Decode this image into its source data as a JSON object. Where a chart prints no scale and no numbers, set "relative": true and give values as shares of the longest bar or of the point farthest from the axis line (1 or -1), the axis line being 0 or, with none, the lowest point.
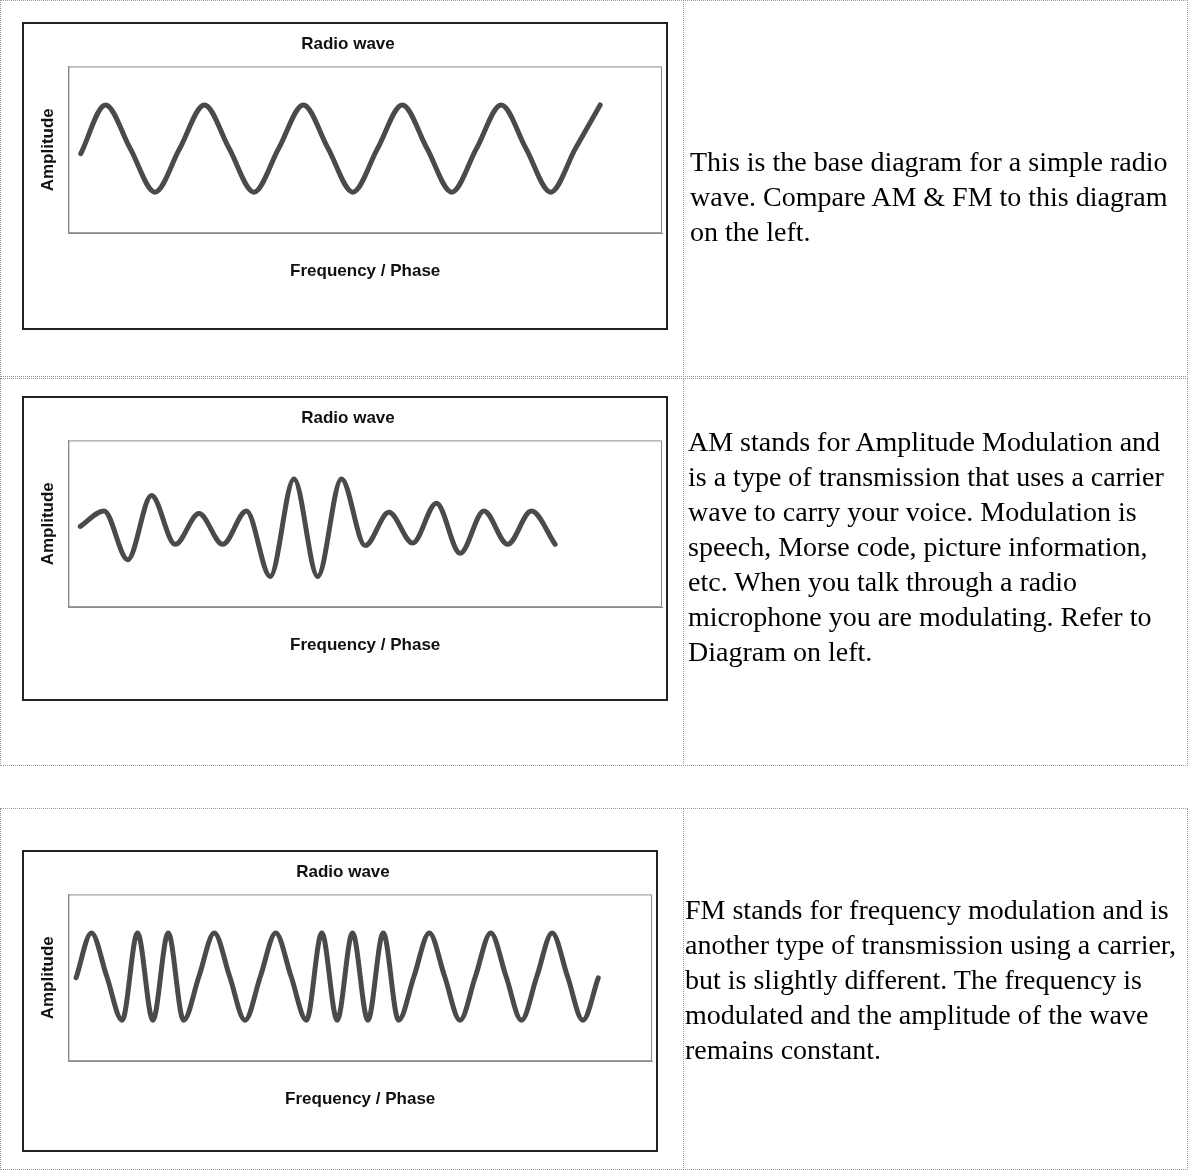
{
  "chart_data": [
    {
      "type": "line",
      "title": "Radio wave",
      "xlabel": "Frequency / Phase",
      "ylabel": "Amplitude",
      "relative": true,
      "legend": false,
      "marker": "none",
      "categories": [
        null,
        null,
        null,
        null,
        null,
        null,
        null,
        null,
        null,
        null,
        null,
        null,
        null,
        null,
        null,
        null,
        null,
        null,
        null,
        null,
        null,
        null,
        null,
        null
      ],
      "series": [
        {
          "color": "#4a4a4a",
          "values": [
            0.62,
            1,
            0.66,
            0.32,
            0.66,
            1,
            0.66,
            0.32,
            0.66,
            1,
            0.66,
            0.32,
            0.66,
            1,
            0.66,
            0.32,
            0.66,
            1,
            0.66,
            0.32,
            0.66,
            1,
            null,
            null
          ]
        }
      ]
    },
    {
      "type": "other",
      "annotations": [
        "This is the base diagram for a simple radio wave. Compare AM & FM to this diagram on the left."
      ]
    },
    {
      "type": "line",
      "title": "Radio wave",
      "xlabel": "Frequency / Phase",
      "ylabel": "Amplitude",
      "relative": true,
      "legend": false,
      "marker": "none",
      "categories": [
        null,
        null,
        null,
        null,
        null,
        null,
        null,
        null,
        null,
        null,
        null,
        null,
        null,
        null,
        null,
        null,
        null,
        null,
        null,
        null,
        null,
        null,
        null,
        null,
        null
      ],
      "series": [
        {
          "color": "#4a4a4a",
          "values": [
            0.63,
            0.75,
            0.37,
            0.87,
            0.49,
            0.73,
            0.49,
            0.75,
            0.24,
            1,
            0.24,
            1,
            0.48,
            0.74,
            0.5,
            0.81,
            0.42,
            0.75,
            0.49,
            0.75,
            0.49,
            null,
            null,
            null,
            null
          ]
        }
      ]
    },
    {
      "type": "other",
      "annotations": [
        "AM stands for Amplitude Modulation and is a type of transmission that uses a carrier wave to carry your voice. Modulation is speech, Morse code, picture information, etc. When you talk through a radio microphone you are modulating. Refer to Diagram on left."
      ]
    },
    {
      "type": "line",
      "title": "Radio wave",
      "xlabel": "Frequency / Phase",
      "ylabel": "Amplitude",
      "relative": true,
      "legend": false,
      "marker": "none",
      "categories": [
        null,
        null,
        null,
        null,
        null,
        null,
        null,
        null,
        null,
        null,
        null,
        null,
        null,
        null,
        null,
        null,
        null,
        null,
        null,
        null,
        null,
        null,
        null,
        null,
        null,
        null,
        null,
        null,
        null,
        null,
        null,
        null,
        null,
        null,
        null,
        null,
        null,
        null
      ],
      "series": [
        {
          "color": "#4a4a4a",
          "values": [
            0.65,
            1,
            0.66,
            0.32,
            1,
            0.32,
            1,
            0.32,
            0.66,
            1,
            0.66,
            0.32,
            0.66,
            1,
            0.66,
            0.32,
            1,
            0.32,
            1,
            0.32,
            1,
            0.32,
            0.66,
            1,
            0.66,
            0.32,
            0.66,
            1,
            0.66,
            0.32,
            0.66,
            1,
            0.66,
            0.32,
            0.65,
            null,
            null,
            null
          ]
        }
      ]
    },
    {
      "type": "other",
      "annotations": [
        "FM stands for frequency modulation and is another type of transmission using a carrier, but is slightly different. The frequency is modulated and the amplitude of the wave remains constant."
      ]
    }
  ]
}
